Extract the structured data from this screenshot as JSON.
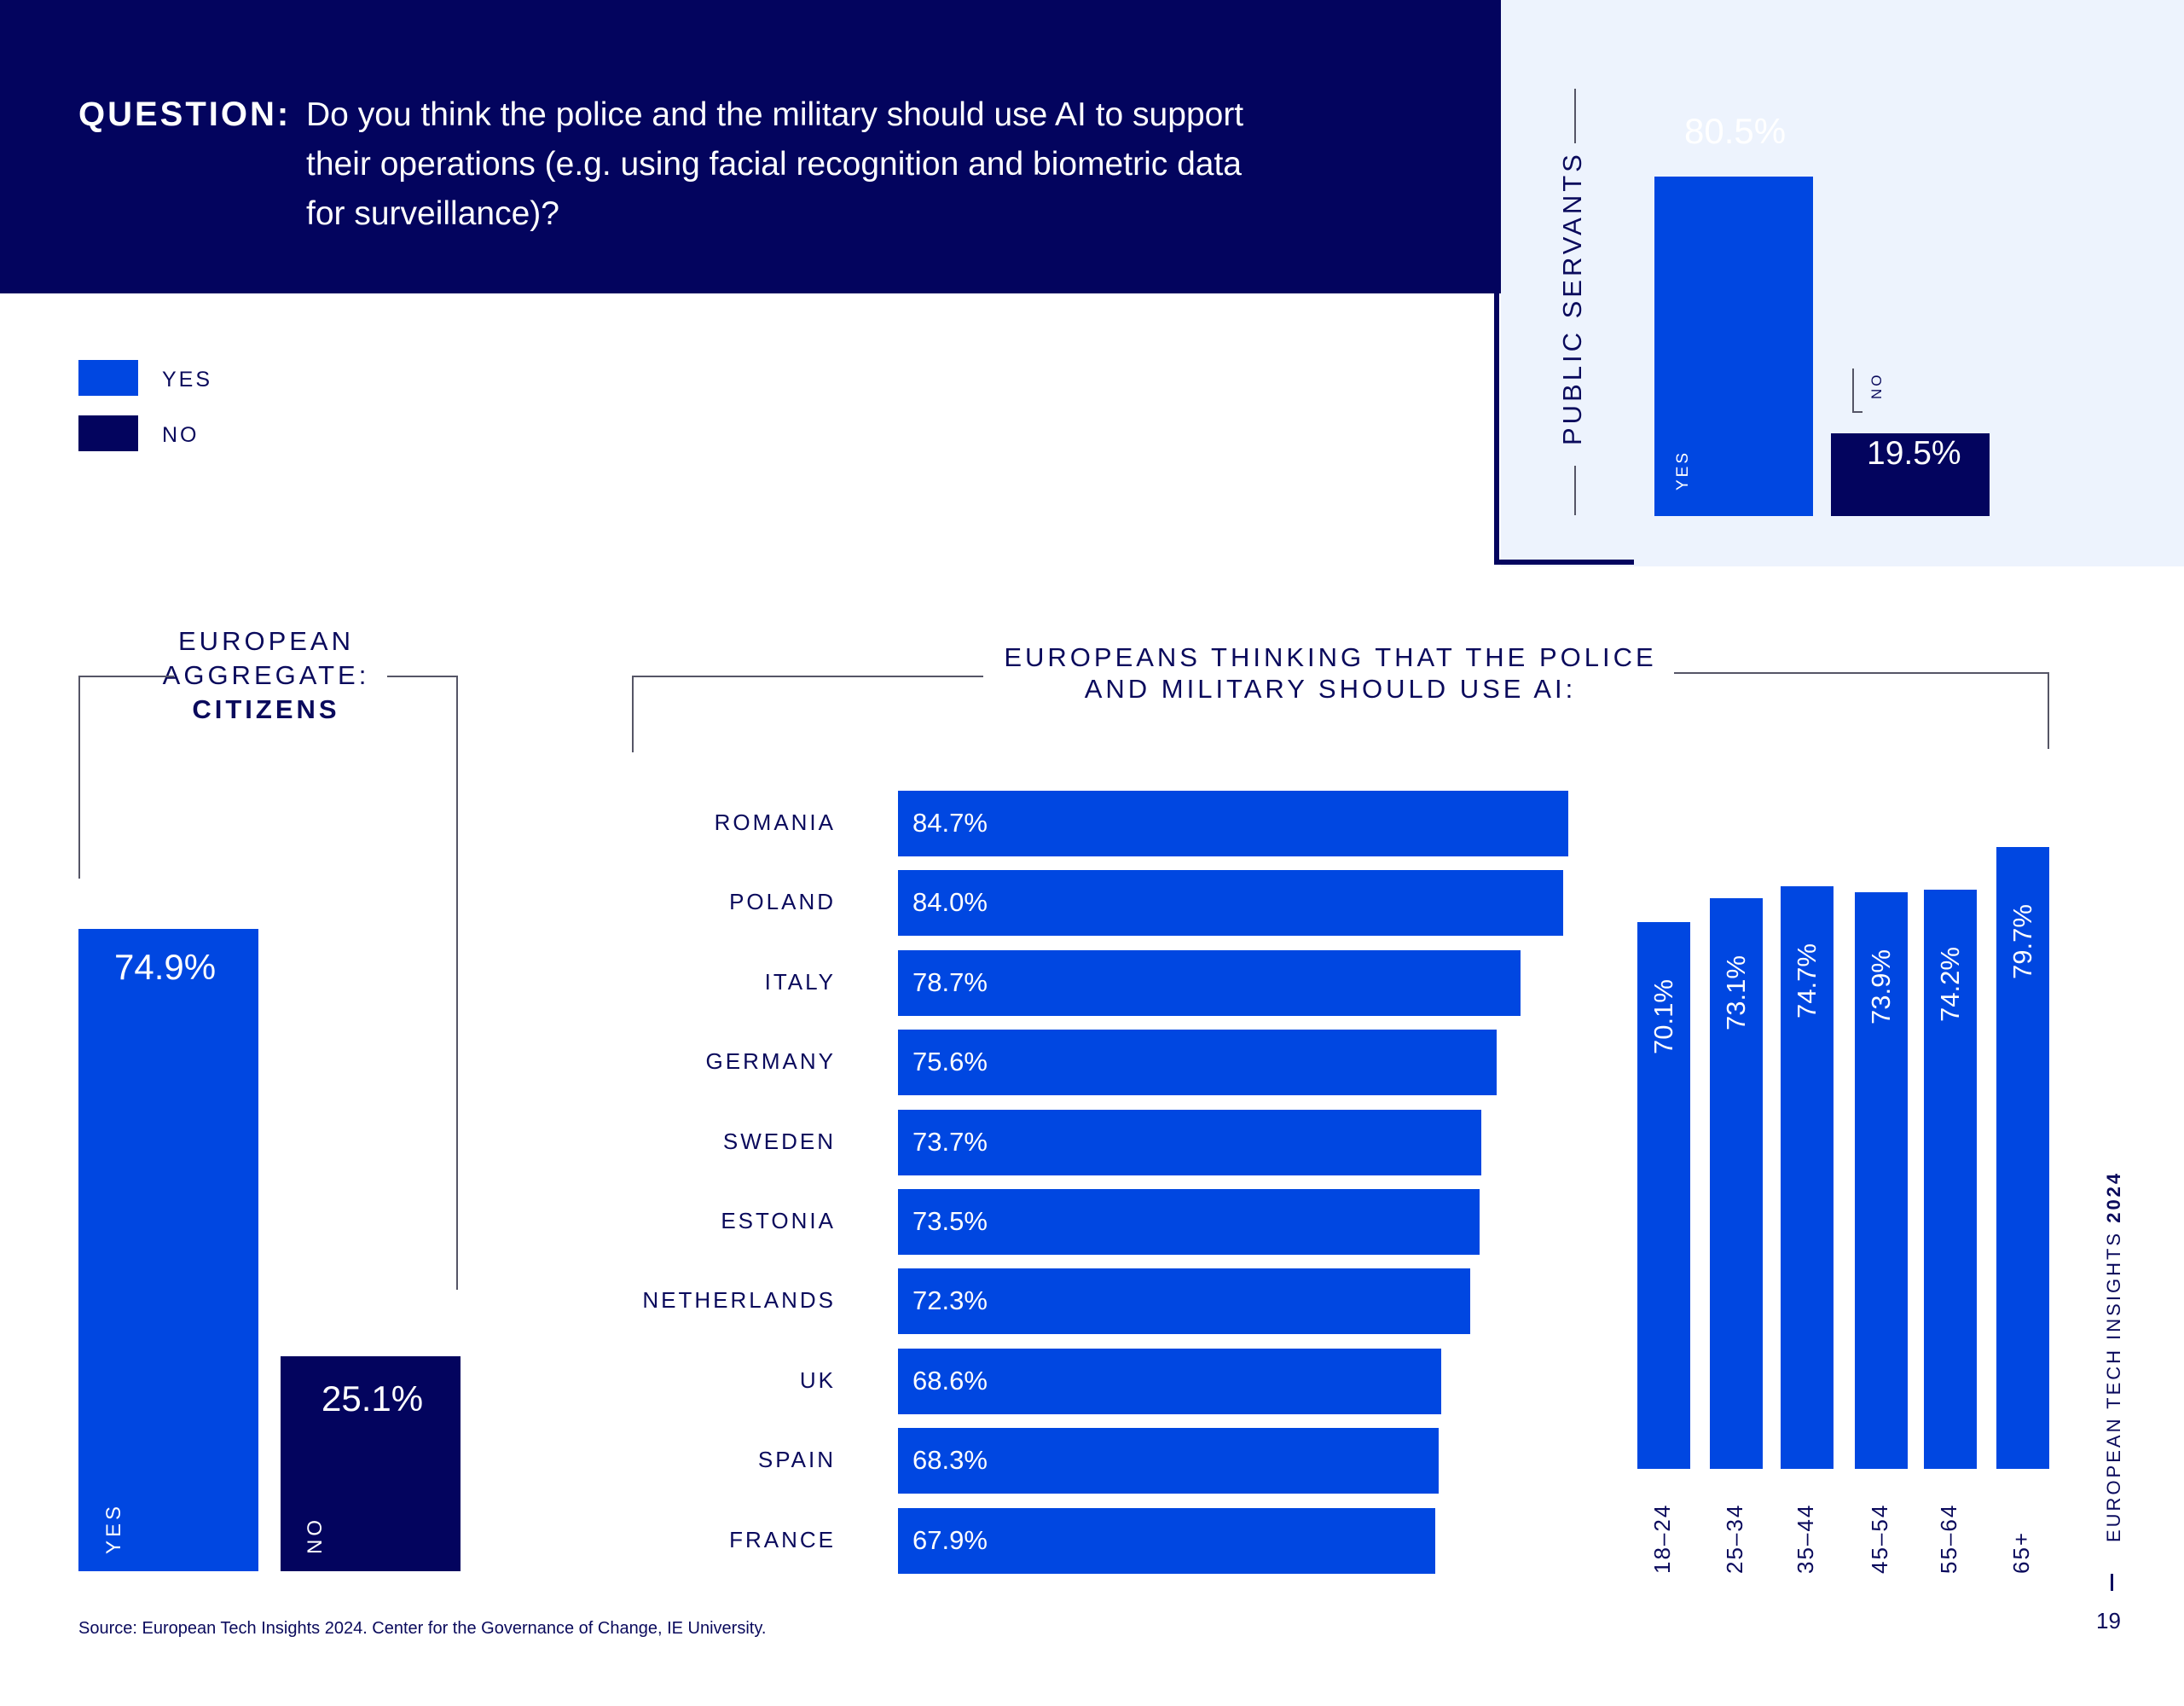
{
  "question": {
    "label": "QUESTION:",
    "lines": [
      "Do you think the police and the military should use AI to support",
      "their operations (e.g. using facial recognition and biometric data",
      "for surveillance)?"
    ]
  },
  "legend": [
    {
      "label": "YES",
      "color": "#0047e1"
    },
    {
      "label": "NO",
      "color": "#03045e"
    }
  ],
  "colors": {
    "yes": "#0047e1",
    "no": "#03045e",
    "panel": "#edf3fd",
    "text": "#0a0a5c"
  },
  "public_servants": {
    "heading": "PUBLIC SERVANTS",
    "yes_label": "YES",
    "no_label": "NO",
    "yes_value": 80.5,
    "no_value": 19.5,
    "yes_text": "80.5%",
    "no_text": "19.5%"
  },
  "citizens": {
    "heading_line1": "EUROPEAN",
    "heading_line2": "AGGREGATE:",
    "heading_line3": "CITIZENS",
    "yes_label": "YES",
    "no_label": "NO",
    "yes_value": 74.9,
    "no_value": 25.1,
    "yes_text": "74.9%",
    "no_text": "25.1%"
  },
  "countries_heading_line1": "EUROPEANS THINKING THAT THE POLICE",
  "countries_heading_line2": "AND MILITARY SHOULD USE AI:",
  "chart_data": [
    {
      "type": "bar",
      "orientation": "horizontal",
      "categories": [
        "ROMANIA",
        "POLAND",
        "ITALY",
        "GERMANY",
        "SWEDEN",
        "ESTONIA",
        "NETHERLANDS",
        "UK",
        "SPAIN",
        "FRANCE"
      ],
      "values": [
        84.7,
        84.0,
        78.7,
        75.6,
        73.7,
        73.5,
        72.3,
        68.6,
        68.3,
        67.9
      ],
      "value_labels": [
        "84.7%",
        "84.0%",
        "78.7%",
        "75.6%",
        "73.7%",
        "73.5%",
        "72.3%",
        "68.6%",
        "68.3%",
        "67.9%"
      ]
    },
    {
      "type": "bar",
      "orientation": "vertical",
      "categories": [
        "18–24",
        "25–34",
        "35–44",
        "45–54",
        "55–64",
        "65+"
      ],
      "values": [
        70.1,
        73.1,
        74.7,
        73.9,
        74.2,
        79.7
      ],
      "value_labels": [
        "70.1%",
        "73.1%",
        "74.7%",
        "73.9%",
        "74.2%",
        "79.7%"
      ]
    }
  ],
  "source": "Source: European Tech Insights 2024. Center for the Governance of Change, IE University.",
  "side_title": {
    "main": "EUROPEAN TECH INSIGHTS ",
    "year": "2024"
  },
  "page_number": "19"
}
